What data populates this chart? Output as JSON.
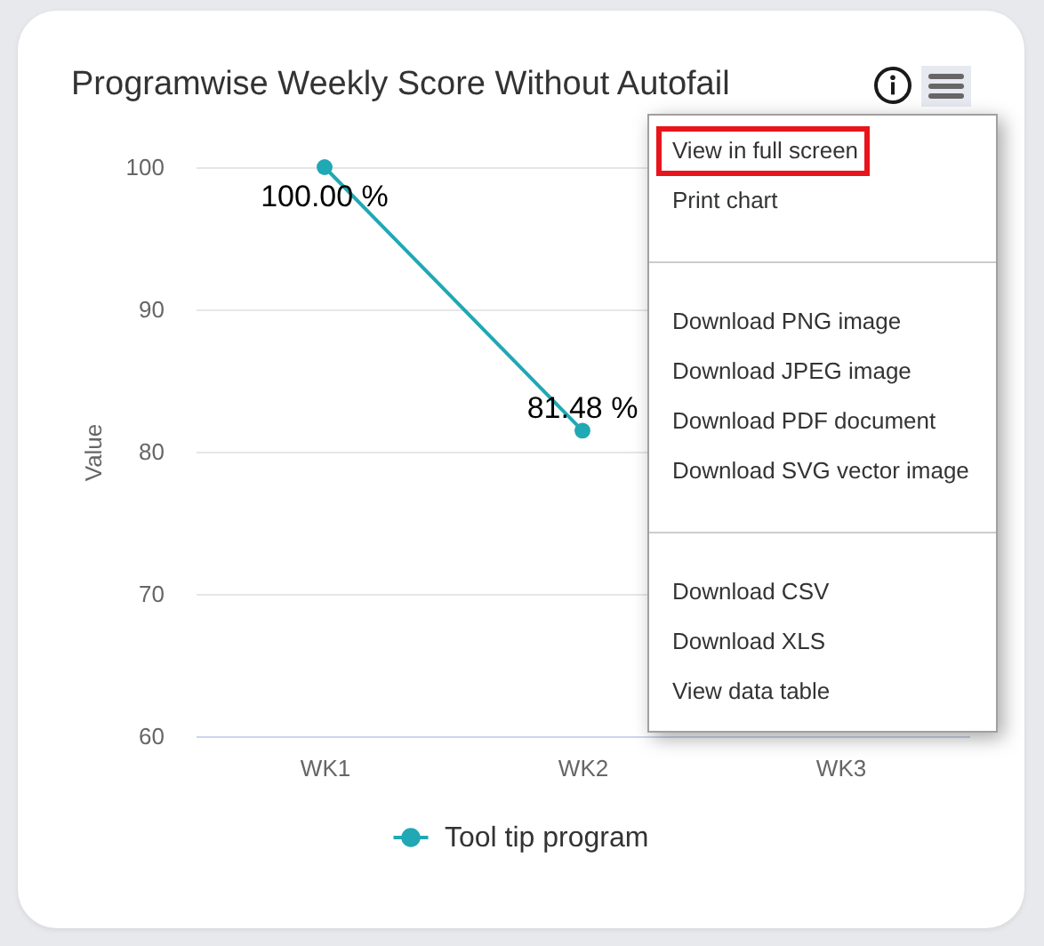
{
  "chart_data": {
    "type": "line",
    "title": "Programwise Weekly Score Without Autofail",
    "ylabel": "Value",
    "categories": [
      "WK1",
      "WK2",
      "WK3"
    ],
    "series": [
      {
        "name": "Tool tip program",
        "color": "#20a8b4",
        "values": [
          100,
          81.48,
          null
        ],
        "value_labels": [
          "100.00 %",
          "81.48 %",
          null
        ]
      }
    ],
    "ylim": [
      60,
      100
    ],
    "yticks": [
      60,
      70,
      80,
      90,
      100
    ],
    "grid": "y",
    "legend": "bottom",
    "marker": "circle",
    "line_style": "solid",
    "annotations": [
      "View in full screen",
      "Print chart",
      "Download PNG image",
      "Download JPEG image",
      "Download PDF document",
      "Download SVG vector image",
      "Download CSV",
      "Download XLS",
      "View data table"
    ]
  }
}
